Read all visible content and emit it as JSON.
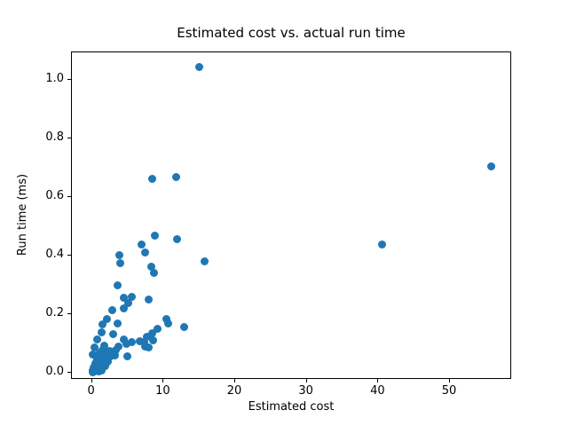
{
  "title": "Estimated cost vs. actual run time",
  "chart_data": {
    "type": "scatter",
    "title": "Estimated cost vs. actual run time",
    "xlabel": "Estimated cost",
    "ylabel": "Run time (ms)",
    "xlim": [
      -2.81,
      58.67
    ],
    "ylim": [
      -0.023,
      1.095
    ],
    "xticks": [
      0,
      10,
      20,
      30,
      40,
      50
    ],
    "xtick_labels": [
      "0",
      "10",
      "20",
      "30",
      "40",
      "50"
    ],
    "yticks": [
      0.0,
      0.2,
      0.4,
      0.6,
      0.8,
      1.0
    ],
    "ytick_labels": [
      "0.0",
      "0.2",
      "0.4",
      "0.6",
      "0.8",
      "1.0"
    ],
    "grid": false,
    "legend_position": "none",
    "marker_color": "#1f77b4",
    "points": [
      [
        15.0,
        1.045
      ],
      [
        55.8,
        0.705
      ],
      [
        11.7,
        0.668
      ],
      [
        8.4,
        0.662
      ],
      [
        8.8,
        0.47
      ],
      [
        11.9,
        0.458
      ],
      [
        40.5,
        0.44
      ],
      [
        6.9,
        0.438
      ],
      [
        7.4,
        0.412
      ],
      [
        3.8,
        0.403
      ],
      [
        15.7,
        0.38
      ],
      [
        3.9,
        0.376
      ],
      [
        8.3,
        0.362
      ],
      [
        8.6,
        0.342
      ],
      [
        3.6,
        0.3
      ],
      [
        5.5,
        0.26
      ],
      [
        4.4,
        0.258
      ],
      [
        7.9,
        0.25
      ],
      [
        5.1,
        0.238
      ],
      [
        4.4,
        0.22
      ],
      [
        2.8,
        0.215
      ],
      [
        2.1,
        0.186
      ],
      [
        10.4,
        0.185
      ],
      [
        10.7,
        0.17
      ],
      [
        3.6,
        0.17
      ],
      [
        1.5,
        0.165
      ],
      [
        12.9,
        0.156
      ],
      [
        9.1,
        0.152
      ],
      [
        1.3,
        0.14
      ],
      [
        8.4,
        0.136
      ],
      [
        3.0,
        0.134
      ],
      [
        7.7,
        0.123
      ],
      [
        0.7,
        0.115
      ],
      [
        4.4,
        0.115
      ],
      [
        8.5,
        0.113
      ],
      [
        6.7,
        0.108
      ],
      [
        5.5,
        0.105
      ],
      [
        7.3,
        0.105
      ],
      [
        4.8,
        0.099
      ],
      [
        1.7,
        0.094
      ],
      [
        7.4,
        0.092
      ],
      [
        3.7,
        0.091
      ],
      [
        0.3,
        0.089
      ],
      [
        7.9,
        0.088
      ],
      [
        3.3,
        0.078
      ],
      [
        1.45,
        0.078
      ],
      [
        2.5,
        0.075
      ],
      [
        2.0,
        0.07
      ],
      [
        1.05,
        0.07
      ],
      [
        2.9,
        0.068
      ],
      [
        1.7,
        0.065
      ],
      [
        0.1,
        0.064
      ],
      [
        2.3,
        0.062
      ],
      [
        3.2,
        0.06
      ],
      [
        1.3,
        0.06
      ],
      [
        4.9,
        0.058
      ],
      [
        0.6,
        0.058
      ],
      [
        2.6,
        0.058
      ],
      [
        1.5,
        0.055
      ],
      [
        2.1,
        0.055
      ],
      [
        0.9,
        0.054
      ],
      [
        1.8,
        0.048
      ],
      [
        0.7,
        0.045
      ],
      [
        1.4,
        0.042
      ],
      [
        2.2,
        0.04
      ],
      [
        0.9,
        0.038
      ],
      [
        1.6,
        0.035
      ],
      [
        0.45,
        0.032
      ],
      [
        1.2,
        0.03
      ],
      [
        0.8,
        0.028
      ],
      [
        1.9,
        0.025
      ],
      [
        0.3,
        0.023
      ],
      [
        0.6,
        0.022
      ],
      [
        0.2,
        0.018
      ],
      [
        1.0,
        0.016
      ],
      [
        0.5,
        0.012
      ],
      [
        1.35,
        0.01
      ],
      [
        0.15,
        0.008
      ],
      [
        0.75,
        0.008
      ],
      [
        0.3,
        0.005
      ],
      [
        1.0,
        0.005
      ],
      [
        0.05,
        0.003
      ]
    ]
  }
}
